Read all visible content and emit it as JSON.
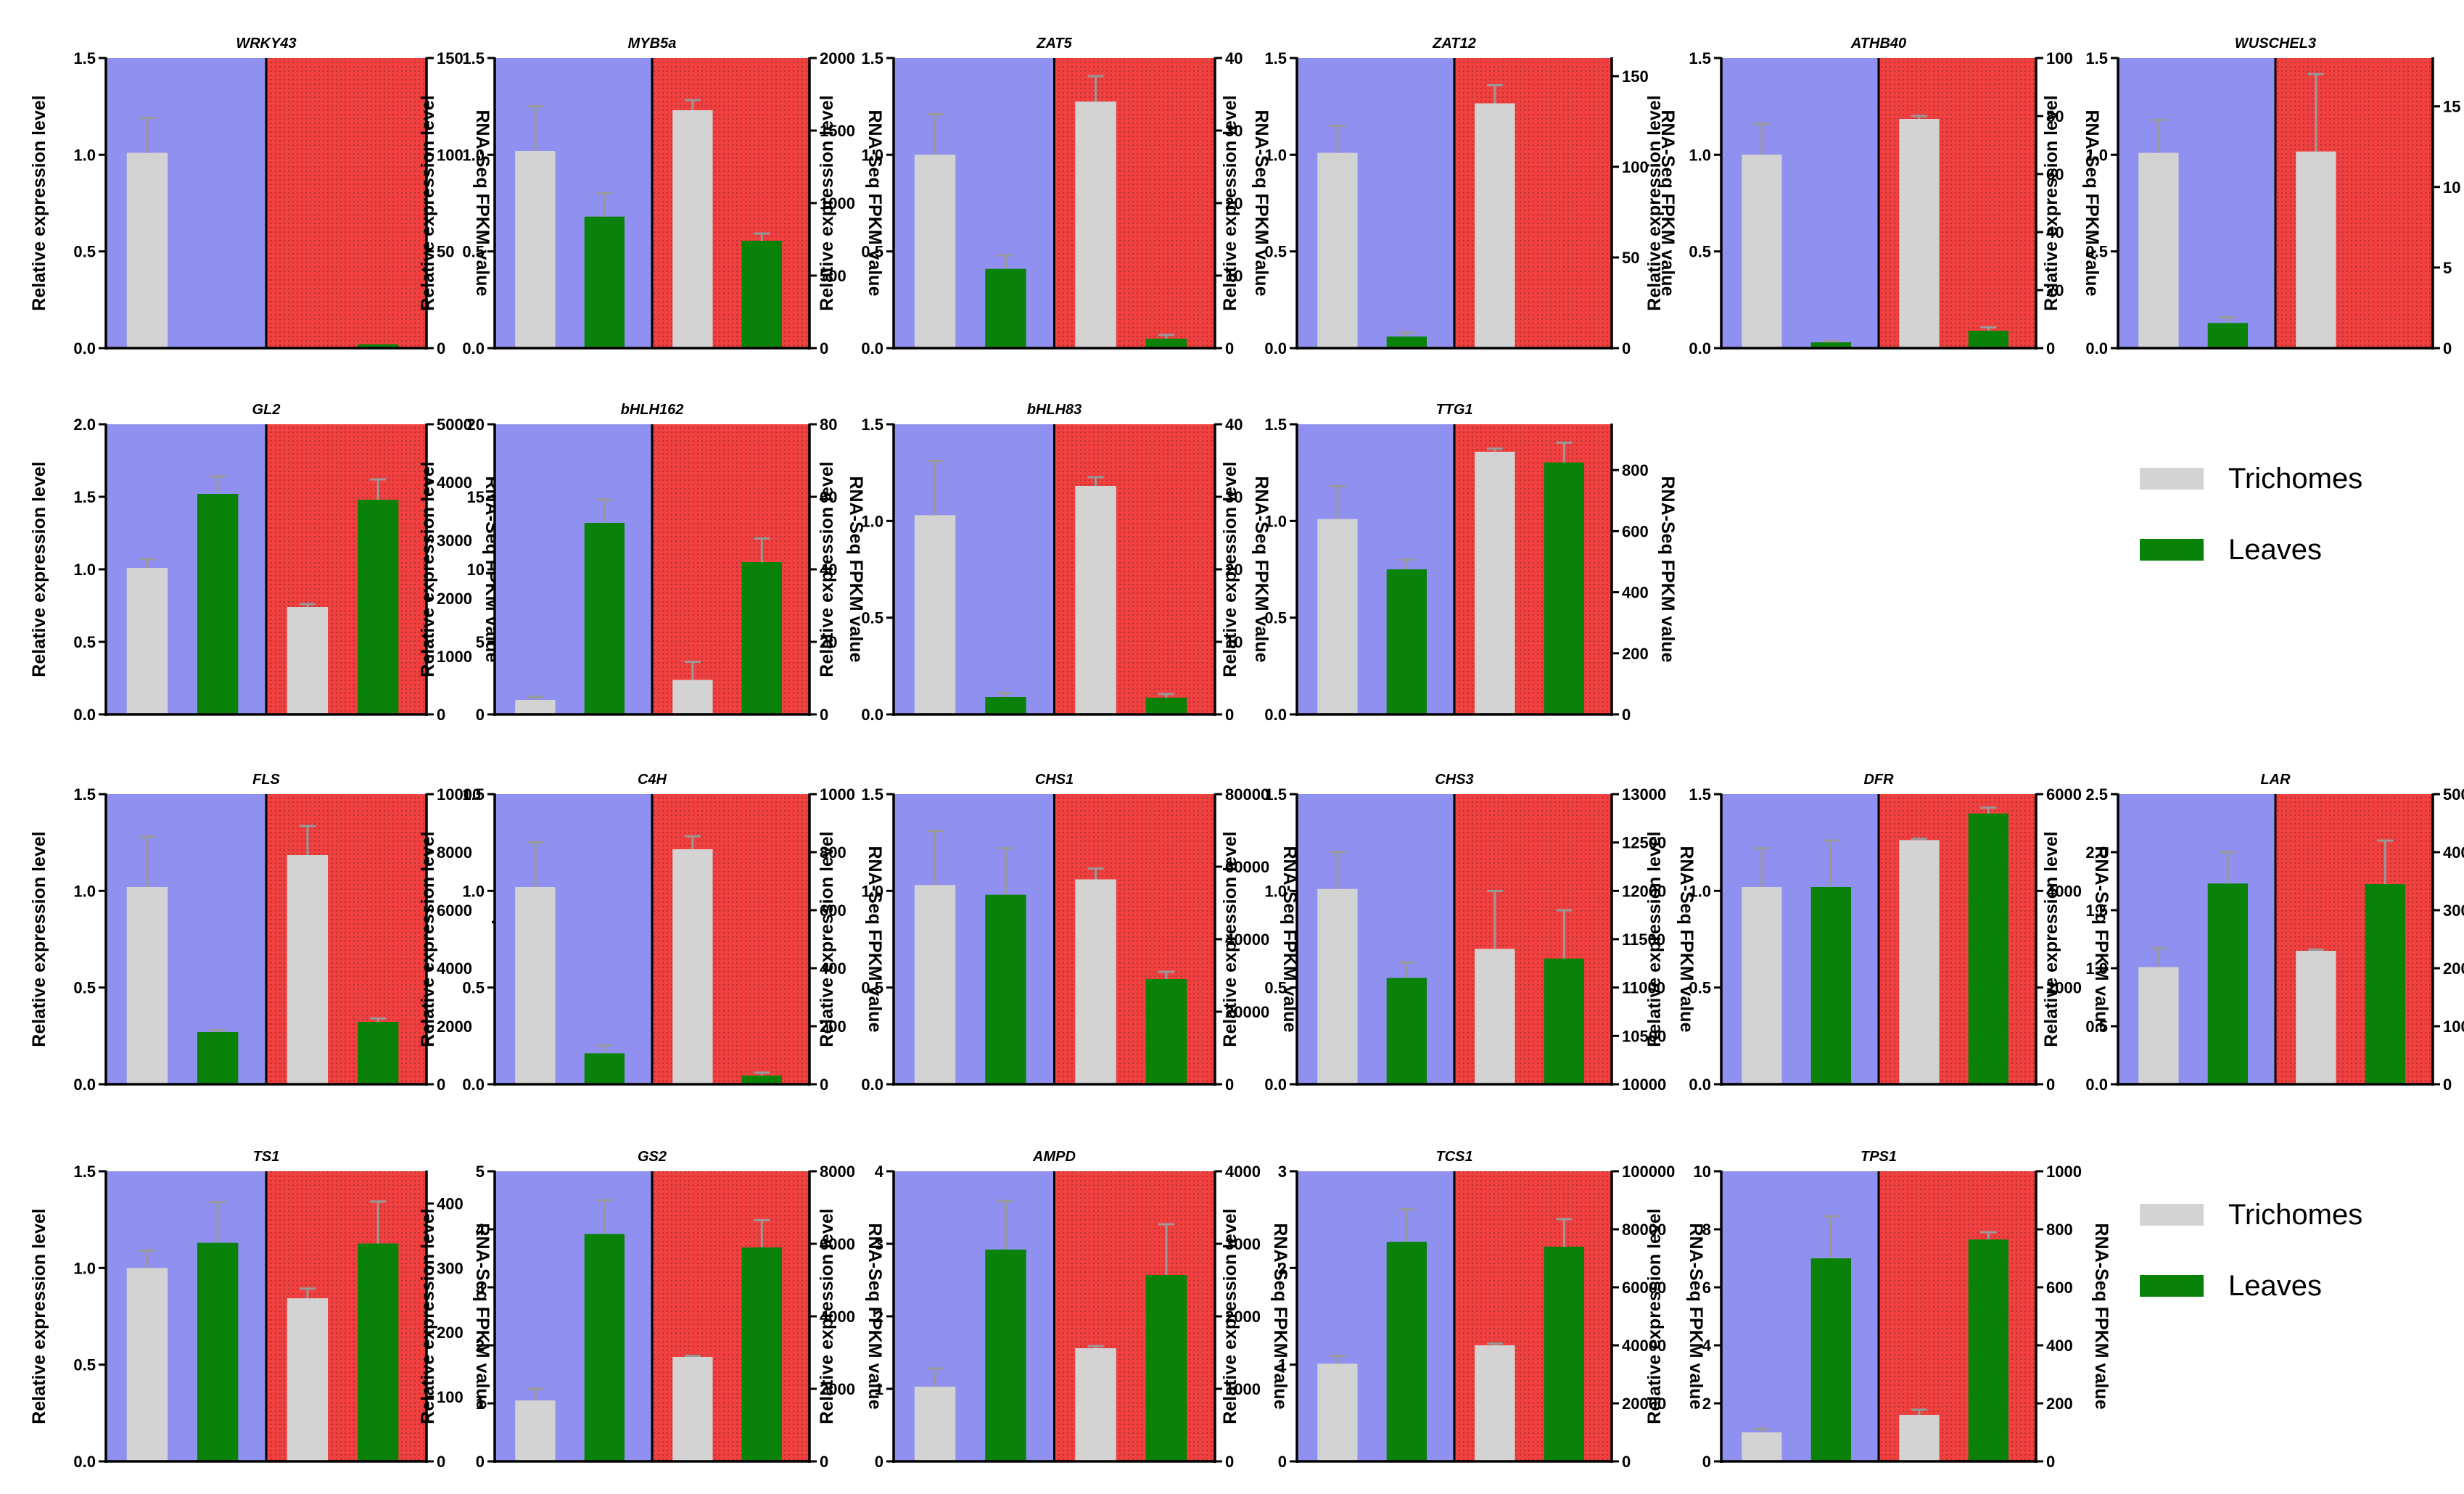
{
  "figure": {
    "left_axis_label": "Relative expression level",
    "right_axis_label": "RNA-Seq FPKM value"
  },
  "colors": {
    "qpcr_background": "#9090F0",
    "rnaseq_background": "#F04040",
    "trichomes": "#D3D3D3",
    "leaves": "#0A820A",
    "error_bar": "#999999"
  },
  "legend": [
    {
      "label": "Trichomes",
      "color": "#D3D3D3"
    },
    {
      "label": "Leaves",
      "color": "#0A820A"
    }
  ],
  "chart_data": [
    {
      "type": "bar",
      "title": "WRKY43",
      "categories": [
        "Trichomes",
        "Leaves"
      ],
      "ylabel": "Relative expression level",
      "y2label": "RNA-Seq FPKM value",
      "ylim": [
        0,
        1.5
      ],
      "yticks": [
        0,
        0.5,
        1.0,
        1.5
      ],
      "y2lim": [
        0,
        150
      ],
      "y2ticks": [
        0,
        50,
        100,
        150
      ],
      "qpcr": {
        "values": [
          1.01,
          0.0
        ],
        "errors": [
          0.18,
          0.0
        ]
      },
      "rnaseq": {
        "values": [
          0,
          2
        ],
        "errors": [
          0,
          0
        ]
      }
    },
    {
      "type": "bar",
      "title": "MYB5a",
      "categories": [
        "Trichomes",
        "Leaves"
      ],
      "ylabel": "Relative expression level",
      "y2label": "RNA-Seq FPKM value",
      "ylim": [
        0,
        1.5
      ],
      "yticks": [
        0,
        0.5,
        1.0,
        1.5
      ],
      "y2lim": [
        0,
        2000
      ],
      "y2ticks": [
        0,
        500,
        1000,
        1500,
        2000
      ],
      "qpcr": {
        "values": [
          1.02,
          0.68
        ],
        "errors": [
          0.23,
          0.12
        ]
      },
      "rnaseq": {
        "values": [
          1640,
          740
        ],
        "errors": [
          70,
          50
        ]
      }
    },
    {
      "type": "bar",
      "title": "ZAT5",
      "categories": [
        "Trichomes",
        "Leaves"
      ],
      "ylabel": "Relative expression level",
      "y2label": "RNA-Seq FPKM value",
      "ylim": [
        0,
        1.5
      ],
      "yticks": [
        0,
        0.5,
        1.0,
        1.5
      ],
      "y2lim": [
        0,
        40
      ],
      "y2ticks": [
        0,
        10,
        20,
        30,
        40
      ],
      "qpcr": {
        "values": [
          1.0,
          0.41
        ],
        "errors": [
          0.21,
          0.07
        ]
      },
      "rnaseq": {
        "values": [
          34,
          1.3
        ],
        "errors": [
          3.5,
          0.5
        ]
      }
    },
    {
      "type": "bar",
      "title": "ZAT12",
      "categories": [
        "Trichomes",
        "Leaves"
      ],
      "ylabel": "Relative expression level",
      "y2label": "RNA-Seq FPKM value",
      "ylim": [
        0,
        1.5
      ],
      "yticks": [
        0,
        0.5,
        1.0,
        1.5
      ],
      "y2lim": [
        0,
        160
      ],
      "y2ticks": [
        0,
        50,
        100,
        150
      ],
      "qpcr": {
        "values": [
          1.01,
          0.06
        ],
        "errors": [
          0.14,
          0.02
        ]
      },
      "rnaseq": {
        "values": [
          135,
          0
        ],
        "errors": [
          10,
          0
        ]
      }
    },
    {
      "type": "bar",
      "title": "ATHB40",
      "categories": [
        "Trichomes",
        "Leaves"
      ],
      "ylabel": "Relative expression level",
      "y2label": "RNA-Seq FPKM value",
      "ylim": [
        0,
        1.5
      ],
      "yticks": [
        0,
        0.5,
        1.0,
        1.5
      ],
      "y2lim": [
        0,
        100
      ],
      "y2ticks": [
        0,
        20,
        40,
        60,
        80,
        100
      ],
      "qpcr": {
        "values": [
          1.0,
          0.03
        ],
        "errors": [
          0.16,
          0.005
        ]
      },
      "rnaseq": {
        "values": [
          79,
          6
        ],
        "errors": [
          1.0,
          1.2
        ]
      }
    },
    {
      "type": "bar",
      "title": "WUSCHEL3",
      "categories": [
        "Trichomes",
        "Leaves"
      ],
      "ylabel": "Relative expression level",
      "y2label": "RNA-Seq FPKM value",
      "ylim": [
        0,
        1.5
      ],
      "yticks": [
        0,
        0.5,
        1.0,
        1.5
      ],
      "y2lim": [
        0,
        18
      ],
      "y2ticks": [
        0,
        5,
        10,
        15
      ],
      "qpcr": {
        "values": [
          1.01,
          0.13
        ],
        "errors": [
          0.17,
          0.03
        ]
      },
      "rnaseq": {
        "values": [
          12.2,
          0
        ],
        "errors": [
          4.8,
          0
        ]
      }
    },
    {
      "type": "bar",
      "title": "GL2",
      "categories": [
        "Trichomes",
        "Leaves"
      ],
      "ylabel": "Relative expression level",
      "y2label": "RNA-Seq FPKM value",
      "ylim": [
        0,
        2.0
      ],
      "yticks": [
        0,
        0.5,
        1.0,
        1.5,
        2.0
      ],
      "y2lim": [
        0,
        5000
      ],
      "y2ticks": [
        0,
        1000,
        2000,
        3000,
        4000,
        5000
      ],
      "qpcr": {
        "values": [
          1.01,
          1.52
        ],
        "errors": [
          0.06,
          0.12
        ]
      },
      "rnaseq": {
        "values": [
          1850,
          3700
        ],
        "errors": [
          50,
          350
        ]
      }
    },
    {
      "type": "bar",
      "title": "bHLH162",
      "categories": [
        "Trichomes",
        "Leaves"
      ],
      "ylabel": "Relative expression level",
      "y2label": "RNA-Seq FPKM value",
      "ylim": [
        0,
        20
      ],
      "yticks": [
        0,
        5,
        10,
        15,
        20
      ],
      "y2lim": [
        0,
        80
      ],
      "y2ticks": [
        0,
        20,
        40,
        60,
        80
      ],
      "qpcr": {
        "values": [
          1.0,
          13.2
        ],
        "errors": [
          0.2,
          1.6
        ]
      },
      "rnaseq": {
        "values": [
          9.5,
          42
        ],
        "errors": [
          5.0,
          6.5
        ]
      }
    },
    {
      "type": "bar",
      "title": "bHLH83",
      "categories": [
        "Trichomes",
        "Leaves"
      ],
      "ylabel": "Relative expression level",
      "y2label": "RNA-Seq FPKM value",
      "ylim": [
        0,
        1.5
      ],
      "yticks": [
        0,
        0.5,
        1.0,
        1.5
      ],
      "y2lim": [
        0,
        40
      ],
      "y2ticks": [
        0,
        10,
        20,
        30,
        40
      ],
      "qpcr": {
        "values": [
          1.03,
          0.09
        ],
        "errors": [
          0.28,
          0.02
        ]
      },
      "rnaseq": {
        "values": [
          31.5,
          2.3
        ],
        "errors": [
          1.2,
          0.5
        ]
      }
    },
    {
      "type": "bar",
      "title": "TTG1",
      "categories": [
        "Trichomes",
        "Leaves"
      ],
      "ylabel": "Relative expression level",
      "y2label": "RNA-Seq FPKM value",
      "ylim": [
        0,
        1.5
      ],
      "yticks": [
        0,
        0.5,
        1.0,
        1.5
      ],
      "y2lim": [
        0,
        950
      ],
      "y2ticks": [
        0,
        200,
        400,
        600,
        800
      ],
      "qpcr": {
        "values": [
          1.01,
          0.75
        ],
        "errors": [
          0.17,
          0.05
        ]
      },
      "rnaseq": {
        "values": [
          860,
          825
        ],
        "errors": [
          10,
          65
        ]
      }
    },
    {
      "type": "bar",
      "title": "FLS",
      "categories": [
        "Trichomes",
        "Leaves"
      ],
      "ylabel": "Relative expression level",
      "y2label": "RNA-Seq FPKM value",
      "ylim": [
        0,
        1.5
      ],
      "yticks": [
        0,
        0.5,
        1.0,
        1.5
      ],
      "y2lim": [
        0,
        10000
      ],
      "y2ticks": [
        0,
        2000,
        4000,
        6000,
        8000,
        10000
      ],
      "qpcr": {
        "values": [
          1.02,
          0.27
        ],
        "errors": [
          0.26,
          0.01
        ]
      },
      "rnaseq": {
        "values": [
          7900,
          2150
        ],
        "errors": [
          1000,
          120
        ]
      }
    },
    {
      "type": "bar",
      "title": "C4H",
      "categories": [
        "Trichomes",
        "Leaves"
      ],
      "ylabel": "Relative expression level",
      "y2label": "RNA-Seq FPKM value",
      "ylim": [
        0,
        1.5
      ],
      "yticks": [
        0,
        0.5,
        1.0,
        1.5
      ],
      "y2lim": [
        0,
        1000
      ],
      "y2ticks": [
        0,
        200,
        400,
        600,
        800,
        1000
      ],
      "qpcr": {
        "values": [
          1.02,
          0.16
        ],
        "errors": [
          0.23,
          0.04
        ]
      },
      "rnaseq": {
        "values": [
          810,
          30
        ],
        "errors": [
          45,
          10
        ]
      }
    },
    {
      "type": "bar",
      "title": "CHS1",
      "categories": [
        "Trichomes",
        "Leaves"
      ],
      "ylabel": "Relative expression level",
      "y2label": "RNA-Seq FPKM value",
      "ylim": [
        0,
        1.5
      ],
      "yticks": [
        0,
        0.5,
        1.0,
        1.5
      ],
      "y2lim": [
        0,
        80000
      ],
      "y2ticks": [
        0,
        20000,
        40000,
        60000,
        80000
      ],
      "qpcr": {
        "values": [
          1.03,
          0.98
        ],
        "errors": [
          0.28,
          0.24
        ]
      },
      "rnaseq": {
        "values": [
          56500,
          29000
        ],
        "errors": [
          3000,
          2000
        ]
      }
    },
    {
      "type": "bar",
      "title": "CHS3",
      "categories": [
        "Trichomes",
        "Leaves"
      ],
      "ylabel": "Relative expression level",
      "y2label": "RNA-Seq FPKM value",
      "ylim": [
        0,
        1.5
      ],
      "yticks": [
        0,
        0.5,
        1.0,
        1.5
      ],
      "y2lim": [
        10000,
        13000
      ],
      "y2ticks": [
        10000,
        10500,
        11000,
        11500,
        12000,
        12500,
        13000
      ],
      "qpcr": {
        "values": [
          1.01,
          0.55
        ],
        "errors": [
          0.19,
          0.08
        ]
      },
      "rnaseq": {
        "values": [
          11400,
          11300
        ],
        "errors": [
          600,
          500
        ]
      }
    },
    {
      "type": "bar",
      "title": "DFR",
      "categories": [
        "Trichomes",
        "Leaves"
      ],
      "ylabel": "Relative expression level",
      "y2label": "RNA-Seq FPKM value",
      "ylim": [
        0,
        1.5
      ],
      "yticks": [
        0,
        0.5,
        1.0,
        1.5
      ],
      "y2lim": [
        0,
        6000
      ],
      "y2ticks": [
        0,
        2000,
        4000,
        6000
      ],
      "qpcr": {
        "values": [
          1.02,
          1.02
        ],
        "errors": [
          0.2,
          0.24
        ]
      },
      "rnaseq": {
        "values": [
          5050,
          5600
        ],
        "errors": [
          30,
          120
        ]
      }
    },
    {
      "type": "bar",
      "title": "LAR",
      "categories": [
        "Trichomes",
        "Leaves"
      ],
      "ylabel": "Relative expression level",
      "y2label": "RNA-Seq FPKM value",
      "ylim": [
        0,
        2.5
      ],
      "yticks": [
        0,
        0.5,
        1.0,
        1.5,
        2.0,
        2.5
      ],
      "y2lim": [
        0,
        50000
      ],
      "y2ticks": [
        0,
        10000,
        20000,
        30000,
        40000,
        50000
      ],
      "qpcr": {
        "values": [
          1.01,
          1.73
        ],
        "errors": [
          0.16,
          0.27
        ]
      },
      "rnaseq": {
        "values": [
          23000,
          34500
        ],
        "errors": [
          200,
          7500
        ]
      }
    },
    {
      "type": "bar",
      "title": "TS1",
      "categories": [
        "Trichomes",
        "Leaves"
      ],
      "ylabel": "Relative expression level",
      "y2label": "RNA-Seq FPKM value",
      "ylim": [
        0,
        1.5
      ],
      "yticks": [
        0,
        0.5,
        1.0,
        1.5
      ],
      "y2lim": [
        0,
        450
      ],
      "y2ticks": [
        0,
        100,
        200,
        300,
        400
      ],
      "qpcr": {
        "values": [
          1.0,
          1.13
        ],
        "errors": [
          0.09,
          0.21
        ]
      },
      "rnaseq": {
        "values": [
          253,
          338
        ],
        "errors": [
          15,
          65
        ]
      }
    },
    {
      "type": "bar",
      "title": "GS2",
      "categories": [
        "Trichomes",
        "Leaves"
      ],
      "ylabel": "Relative expression level",
      "y2label": "RNA-Seq FPKM value",
      "ylim": [
        0,
        5
      ],
      "yticks": [
        0,
        1,
        2,
        3,
        4,
        5
      ],
      "y2lim": [
        0,
        8000
      ],
      "y2ticks": [
        0,
        2000,
        4000,
        6000,
        8000
      ],
      "qpcr": {
        "values": [
          1.05,
          3.92
        ],
        "errors": [
          0.2,
          0.58
        ]
      },
      "rnaseq": {
        "values": [
          2880,
          5900
        ],
        "errors": [
          30,
          750
        ]
      }
    },
    {
      "type": "bar",
      "title": "AMPD",
      "categories": [
        "Trichomes",
        "Leaves"
      ],
      "ylabel": "Relative expression level",
      "y2label": "RNA-Seq FPKM value",
      "ylim": [
        0,
        4
      ],
      "yticks": [
        0,
        1,
        2,
        3,
        4
      ],
      "y2lim": [
        0,
        4000
      ],
      "y2ticks": [
        0,
        1000,
        2000,
        3000,
        4000
      ],
      "qpcr": {
        "values": [
          1.03,
          2.92
        ],
        "errors": [
          0.25,
          0.67
        ]
      },
      "rnaseq": {
        "values": [
          1560,
          2570
        ],
        "errors": [
          30,
          700
        ]
      }
    },
    {
      "type": "bar",
      "title": "TCS1",
      "categories": [
        "Trichomes",
        "Leaves"
      ],
      "ylabel": "Relative expression level",
      "y2label": "RNA-Seq FPKM value",
      "ylim": [
        0,
        3
      ],
      "yticks": [
        0,
        1,
        2,
        3
      ],
      "y2lim": [
        0,
        100000
      ],
      "y2ticks": [
        0,
        20000,
        40000,
        60000,
        80000,
        100000
      ],
      "qpcr": {
        "values": [
          1.01,
          2.27
        ],
        "errors": [
          0.08,
          0.34
        ]
      },
      "rnaseq": {
        "values": [
          40000,
          74000
        ],
        "errors": [
          600,
          9500
        ]
      }
    },
    {
      "type": "bar",
      "title": "TPS1",
      "categories": [
        "Trichomes",
        "Leaves"
      ],
      "ylabel": "Relative expression level",
      "y2label": "RNA-Seq FPKM value",
      "ylim": [
        0,
        10
      ],
      "yticks": [
        0,
        2,
        4,
        6,
        8,
        10
      ],
      "y2lim": [
        0,
        1000
      ],
      "y2ticks": [
        0,
        200,
        400,
        600,
        800,
        1000
      ],
      "qpcr": {
        "values": [
          1.0,
          7.0
        ],
        "errors": [
          0.12,
          1.45
        ]
      },
      "rnaseq": {
        "values": [
          160,
          765
        ],
        "errors": [
          18,
          25
        ]
      }
    }
  ]
}
